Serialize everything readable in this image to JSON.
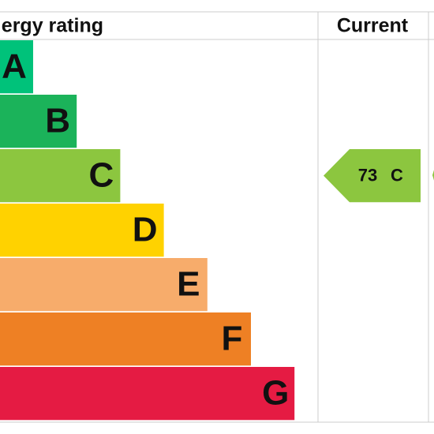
{
  "header": {
    "title": "ergy rating",
    "current": "Current"
  },
  "bands": [
    {
      "letter": "A",
      "color": "#00c27a"
    },
    {
      "letter": "B",
      "color": "#1bb35a"
    },
    {
      "letter": "C",
      "color": "#8cc63f"
    },
    {
      "letter": "D",
      "color": "#ffd200"
    },
    {
      "letter": "E",
      "color": "#f7ac6b"
    },
    {
      "letter": "F",
      "color": "#ee8024"
    },
    {
      "letter": "G",
      "color": "#e51b43"
    }
  ],
  "current": {
    "score": 73,
    "band": "C",
    "color": "#8cc63f"
  }
}
